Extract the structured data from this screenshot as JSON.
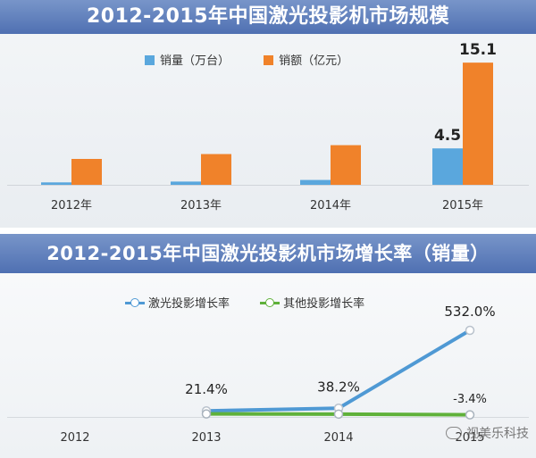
{
  "colors": {
    "sales": "#5aa7dd",
    "revenue": "#f0822a",
    "laser": "#4f99d4",
    "other": "#5fb13a"
  },
  "chart_data": [
    {
      "type": "bar",
      "title": "2012-2015年中国激光投影机市场规模",
      "categories": [
        "2012年",
        "2013年",
        "2014年",
        "2015年"
      ],
      "series": [
        {
          "name": "销量（万台）",
          "values": [
            0.3,
            0.4,
            0.6,
            4.5
          ]
        },
        {
          "name": "销额（亿元）",
          "values": [
            3.2,
            3.8,
            4.9,
            15.1
          ]
        }
      ],
      "data_labels": {
        "sales": [
          null,
          null,
          null,
          "4.5"
        ],
        "revenue": [
          null,
          null,
          null,
          "15.1"
        ]
      },
      "ylim": [
        0,
        16
      ],
      "legend_position": "top"
    },
    {
      "type": "line",
      "title": "2012-2015年中国激光投影机市场增长率（销量）",
      "categories": [
        "2012",
        "2013",
        "2014",
        "2015"
      ],
      "series": [
        {
          "name": "激光投影增长率",
          "values": [
            null,
            21.4,
            38.2,
            532.0
          ]
        },
        {
          "name": "其他投影增长率",
          "values": [
            null,
            2.0,
            1.0,
            -3.4
          ]
        }
      ],
      "data_labels": {
        "laser": [
          null,
          "21.4%",
          "38.2%",
          "532.0%"
        ],
        "other": [
          null,
          null,
          null,
          "-3.4%"
        ]
      },
      "ylim": [
        -40,
        600
      ],
      "legend_position": "top"
    }
  ],
  "watermark": "视美乐科技"
}
